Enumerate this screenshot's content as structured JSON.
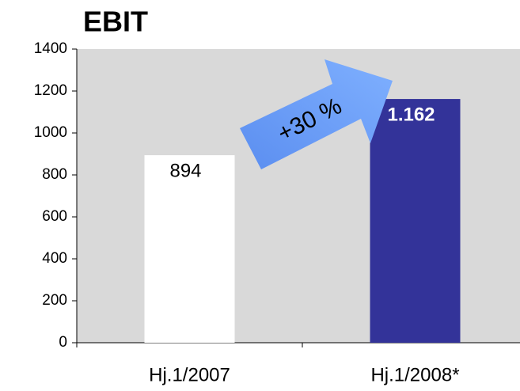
{
  "chart_data": {
    "type": "bar",
    "title": "EBIT",
    "categories": [
      "Hj.1/2007",
      "Hj.1/2008*"
    ],
    "values": [
      894,
      1162
    ],
    "value_labels": [
      "894",
      "1.162"
    ],
    "colors": [
      "#ffffff",
      "#333399"
    ],
    "ylim": [
      0,
      1400
    ],
    "yticks": [
      0,
      200,
      400,
      600,
      800,
      1000,
      1200,
      1400
    ],
    "annotation": "+30 %",
    "plot_background": "#d9d9d9"
  }
}
